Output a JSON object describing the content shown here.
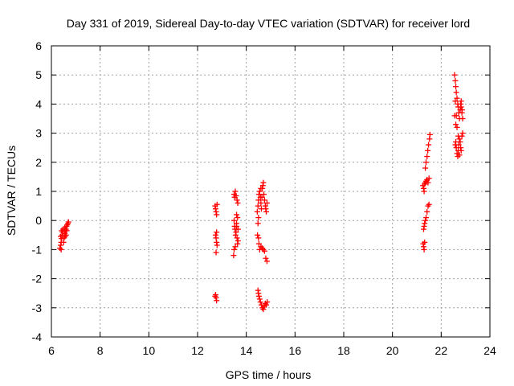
{
  "chart_data": {
    "type": "scatter",
    "title": "Day 331 of 2019, Sidereal Day-to-day VTEC variation (SDTVAR) for receiver lord",
    "xlabel": "GPS time / hours",
    "ylabel": "SDTVAR / TECUs",
    "xlim": [
      6,
      24
    ],
    "ylim": [
      -4,
      6
    ],
    "xticks": [
      6,
      8,
      10,
      12,
      14,
      16,
      18,
      20,
      22,
      24
    ],
    "yticks": [
      -4,
      -3,
      -2,
      -1,
      0,
      1,
      2,
      3,
      4,
      5,
      6
    ],
    "grid": true,
    "marker": "+",
    "color": "#ff0000",
    "series": [
      {
        "name": "SDTVAR",
        "points": [
          [
            6.35,
            -0.95
          ],
          [
            6.38,
            -0.85
          ],
          [
            6.4,
            -0.75
          ],
          [
            6.42,
            -0.62
          ],
          [
            6.44,
            -0.5
          ],
          [
            6.46,
            -0.4
          ],
          [
            6.38,
            -0.55
          ],
          [
            6.42,
            -0.35
          ],
          [
            6.5,
            -0.75
          ],
          [
            6.52,
            -0.6
          ],
          [
            6.54,
            -0.45
          ],
          [
            6.56,
            -0.55
          ],
          [
            6.58,
            -0.35
          ],
          [
            6.6,
            -0.3
          ],
          [
            6.62,
            -0.2
          ],
          [
            6.65,
            -0.15
          ],
          [
            6.68,
            -0.1
          ],
          [
            6.7,
            -0.05
          ],
          [
            6.55,
            -0.25
          ],
          [
            6.48,
            -0.3
          ],
          [
            6.6,
            -0.5
          ],
          [
            6.4,
            -1.0
          ],
          [
            6.63,
            -0.35
          ],
          [
            12.72,
            0.5
          ],
          [
            12.74,
            0.4
          ],
          [
            12.76,
            0.3
          ],
          [
            12.78,
            0.2
          ],
          [
            12.8,
            0.55
          ],
          [
            12.74,
            -0.5
          ],
          [
            12.76,
            -0.6
          ],
          [
            12.78,
            -0.75
          ],
          [
            12.8,
            -0.85
          ],
          [
            12.76,
            -1.1
          ],
          [
            12.78,
            -0.4
          ],
          [
            12.74,
            -2.55
          ],
          [
            12.76,
            -2.65
          ],
          [
            12.78,
            -2.75
          ],
          [
            12.72,
            -2.6
          ],
          [
            13.5,
            0.9
          ],
          [
            13.52,
            0.8
          ],
          [
            13.55,
            1.0
          ],
          [
            13.58,
            0.85
          ],
          [
            13.62,
            0.7
          ],
          [
            13.65,
            0.6
          ],
          [
            13.5,
            0.0
          ],
          [
            13.52,
            -0.2
          ],
          [
            13.54,
            -0.3
          ],
          [
            13.56,
            -0.5
          ],
          [
            13.58,
            -0.4
          ],
          [
            13.6,
            -0.2
          ],
          [
            13.62,
            -0.6
          ],
          [
            13.64,
            -0.8
          ],
          [
            13.66,
            -0.7
          ],
          [
            13.5,
            -1.0
          ],
          [
            13.48,
            -1.2
          ],
          [
            13.55,
            -0.9
          ],
          [
            13.6,
            -0.1
          ],
          [
            13.64,
            0.1
          ],
          [
            13.66,
            -0.3
          ],
          [
            13.6,
            0.2
          ],
          [
            14.45,
            0.3
          ],
          [
            14.48,
            0.5
          ],
          [
            14.5,
            0.7
          ],
          [
            14.52,
            0.9
          ],
          [
            14.55,
            1.0
          ],
          [
            14.58,
            0.8
          ],
          [
            14.6,
            0.6
          ],
          [
            14.62,
            0.4
          ],
          [
            14.64,
            0.8
          ],
          [
            14.66,
            1.1
          ],
          [
            14.68,
            1.2
          ],
          [
            14.7,
            1.3
          ],
          [
            14.72,
            0.9
          ],
          [
            14.75,
            0.7
          ],
          [
            14.78,
            0.5
          ],
          [
            14.8,
            0.4
          ],
          [
            14.82,
            0.3
          ],
          [
            14.85,
            0.6
          ],
          [
            14.6,
            1.1
          ],
          [
            14.5,
            0.1
          ],
          [
            14.48,
            -0.1
          ],
          [
            14.46,
            -0.5
          ],
          [
            14.5,
            -0.6
          ],
          [
            14.52,
            -0.8
          ],
          [
            14.55,
            -1.0
          ],
          [
            14.6,
            -0.9
          ],
          [
            14.65,
            -0.95
          ],
          [
            14.7,
            -1.0
          ],
          [
            14.75,
            -1.05
          ],
          [
            14.8,
            -1.3
          ],
          [
            14.85,
            -1.4
          ],
          [
            14.48,
            -2.4
          ],
          [
            14.5,
            -2.5
          ],
          [
            14.52,
            -2.6
          ],
          [
            14.55,
            -2.7
          ],
          [
            14.58,
            -2.8
          ],
          [
            14.62,
            -2.9
          ],
          [
            14.66,
            -3.0
          ],
          [
            14.7,
            -3.05
          ],
          [
            14.74,
            -2.95
          ],
          [
            14.78,
            -2.85
          ],
          [
            14.82,
            -2.9
          ],
          [
            14.86,
            -2.8
          ],
          [
            21.25,
            1.2
          ],
          [
            21.28,
            1.1
          ],
          [
            21.3,
            1.0
          ],
          [
            21.32,
            1.25
          ],
          [
            21.35,
            1.3
          ],
          [
            21.38,
            1.35
          ],
          [
            21.42,
            1.4
          ],
          [
            21.46,
            1.3
          ],
          [
            21.5,
            1.45
          ],
          [
            21.28,
            -0.3
          ],
          [
            21.3,
            -0.2
          ],
          [
            21.32,
            -0.1
          ],
          [
            21.35,
            0.0
          ],
          [
            21.38,
            0.1
          ],
          [
            21.42,
            0.3
          ],
          [
            21.46,
            0.5
          ],
          [
            21.5,
            0.55
          ],
          [
            21.26,
            -0.8
          ],
          [
            21.28,
            -0.9
          ],
          [
            21.3,
            -1.0
          ],
          [
            21.32,
            -0.75
          ],
          [
            21.35,
            1.8
          ],
          [
            21.38,
            2.0
          ],
          [
            21.42,
            2.2
          ],
          [
            21.45,
            2.4
          ],
          [
            21.48,
            2.6
          ],
          [
            21.52,
            2.8
          ],
          [
            21.54,
            2.95
          ],
          [
            22.55,
            5.0
          ],
          [
            22.58,
            4.8
          ],
          [
            22.6,
            4.6
          ],
          [
            22.62,
            4.4
          ],
          [
            22.65,
            4.2
          ],
          [
            22.68,
            4.0
          ],
          [
            22.7,
            3.9
          ],
          [
            22.72,
            3.7
          ],
          [
            22.75,
            3.5
          ],
          [
            22.78,
            3.8
          ],
          [
            22.8,
            4.0
          ],
          [
            22.82,
            3.9
          ],
          [
            22.85,
            3.7
          ],
          [
            22.88,
            3.5
          ],
          [
            22.6,
            3.3
          ],
          [
            22.62,
            3.6
          ],
          [
            22.65,
            3.2
          ],
          [
            22.58,
            2.6
          ],
          [
            22.6,
            2.7
          ],
          [
            22.62,
            2.5
          ],
          [
            22.65,
            2.3
          ],
          [
            22.68,
            2.2
          ],
          [
            22.7,
            2.4
          ],
          [
            22.72,
            2.6
          ],
          [
            22.75,
            2.8
          ],
          [
            22.78,
            2.7
          ],
          [
            22.8,
            2.5
          ],
          [
            22.82,
            2.4
          ],
          [
            22.85,
            2.9
          ],
          [
            22.88,
            3.0
          ],
          [
            22.7,
            2.9
          ],
          [
            22.75,
            2.25
          ],
          [
            22.55,
            3.6
          ],
          [
            22.58,
            4.1
          ],
          [
            22.82,
            4.1
          ],
          [
            22.86,
            3.8
          ]
        ]
      }
    ]
  }
}
